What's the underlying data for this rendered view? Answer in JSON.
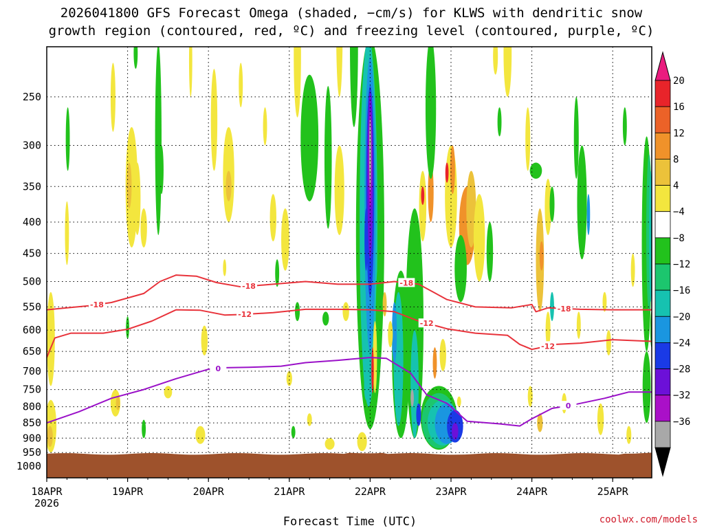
{
  "title": {
    "line1": "2026041800 GFS Forecast Omega (shaded, −cm/s) for KLWS with dendritic snow",
    "line2": "growth region (contoured, red, ºC) and freezing level (contoured, purple, ºC)"
  },
  "credit": "coolwx.com/models",
  "chart_data": {
    "type": "time-height cross section",
    "title": "2026041800 GFS Forecast Omega (shaded, −cm/s) for KLWS with dendritic snow growth region (contoured, red, ºC) and freezing level (contoured, purple, ºC)",
    "xlabel": "Forecast Time (UTC)",
    "ylabel": "",
    "x_ticks": [
      {
        "label": "18APR",
        "sub": "2026",
        "day": 0
      },
      {
        "label": "19APR",
        "day": 1
      },
      {
        "label": "20APR",
        "day": 2
      },
      {
        "label": "21APR",
        "day": 3
      },
      {
        "label": "22APR",
        "day": 4
      },
      {
        "label": "23APR",
        "day": 5
      },
      {
        "label": "24APR",
        "day": 6
      },
      {
        "label": "25APR",
        "day": 7
      }
    ],
    "xlim_days": [
      0,
      7.5
    ],
    "y_ticks": [
      250,
      300,
      350,
      400,
      450,
      500,
      550,
      600,
      650,
      700,
      750,
      800,
      850,
      900,
      950,
      1000
    ],
    "ylim_hpa": [
      1035,
      200
    ],
    "y_scale": "log-pressure",
    "grid": "dotted",
    "surface_pressure_hpa": 955,
    "colorbar": {
      "labels": [
        "20",
        "16",
        "12",
        "8",
        "4",
        "−4",
        "−8",
        "−12",
        "−16",
        "−20",
        "−24",
        "−28",
        "−32",
        "−36"
      ],
      "colors": [
        "#ea1c7f",
        "#e8242a",
        "#ec6228",
        "#f0922a",
        "#ecc23a",
        "#f3e63e",
        "#ffffff",
        "#22c21c",
        "#1cc66e",
        "#16c2b0",
        "#1a96e0",
        "#1a3ae6",
        "#6c10d8",
        "#aa10c8",
        "#a8a8a8",
        "#000000"
      ]
    },
    "dgz_contours": [
      {
        "value": -18,
        "label": "-18",
        "points": [
          [
            0,
            556
          ],
          [
            0.25,
            552
          ],
          [
            0.5,
            548
          ],
          [
            0.8,
            541
          ],
          [
            1.2,
            523
          ],
          [
            1.4,
            500
          ],
          [
            1.6,
            488
          ],
          [
            1.85,
            490
          ],
          [
            2.1,
            502
          ],
          [
            2.4,
            510
          ],
          [
            2.8,
            505
          ],
          [
            3.2,
            500
          ],
          [
            3.6,
            505
          ],
          [
            4.0,
            505
          ],
          [
            4.3,
            500
          ],
          [
            4.6,
            505
          ],
          [
            4.95,
            535
          ],
          [
            5.3,
            550
          ],
          [
            5.75,
            552
          ],
          [
            6.0,
            545
          ],
          [
            6.05,
            560
          ],
          [
            6.2,
            552
          ],
          [
            6.6,
            555
          ],
          [
            7.0,
            556
          ],
          [
            7.5,
            556
          ]
        ]
      },
      {
        "value": -12,
        "label": "-12",
        "points": [
          [
            0,
            665
          ],
          [
            0.1,
            618
          ],
          [
            0.3,
            607
          ],
          [
            0.7,
            607
          ],
          [
            1.0,
            598
          ],
          [
            1.3,
            580
          ],
          [
            1.6,
            556
          ],
          [
            1.9,
            557
          ],
          [
            2.2,
            567
          ],
          [
            2.4,
            566
          ],
          [
            2.8,
            562
          ],
          [
            3.2,
            555
          ],
          [
            3.6,
            555
          ],
          [
            4.0,
            556
          ],
          [
            4.3,
            560
          ],
          [
            4.6,
            580
          ],
          [
            4.95,
            597
          ],
          [
            5.3,
            607
          ],
          [
            5.7,
            612
          ],
          [
            5.85,
            633
          ],
          [
            6.0,
            645
          ],
          [
            6.3,
            633
          ],
          [
            6.6,
            630
          ],
          [
            7.0,
            622
          ],
          [
            7.5,
            626
          ]
        ]
      }
    ],
    "freezing_level_contour": {
      "value": 0,
      "label": "0",
      "points": [
        [
          0,
          850
        ],
        [
          0.4,
          815
        ],
        [
          0.8,
          775
        ],
        [
          1.2,
          750
        ],
        [
          1.6,
          720
        ],
        [
          2.0,
          695
        ],
        [
          2.2,
          691
        ],
        [
          2.5,
          690
        ],
        [
          2.9,
          687
        ],
        [
          3.2,
          678
        ],
        [
          3.6,
          672
        ],
        [
          4.0,
          665
        ],
        [
          4.2,
          667
        ],
        [
          4.5,
          705
        ],
        [
          4.7,
          765
        ],
        [
          4.95,
          790
        ],
        [
          5.2,
          845
        ],
        [
          5.6,
          853
        ],
        [
          5.85,
          860
        ],
        [
          6.0,
          837
        ],
        [
          6.25,
          805
        ],
        [
          6.5,
          795
        ],
        [
          6.9,
          775
        ],
        [
          7.2,
          757
        ],
        [
          7.5,
          757
        ]
      ]
    }
  }
}
